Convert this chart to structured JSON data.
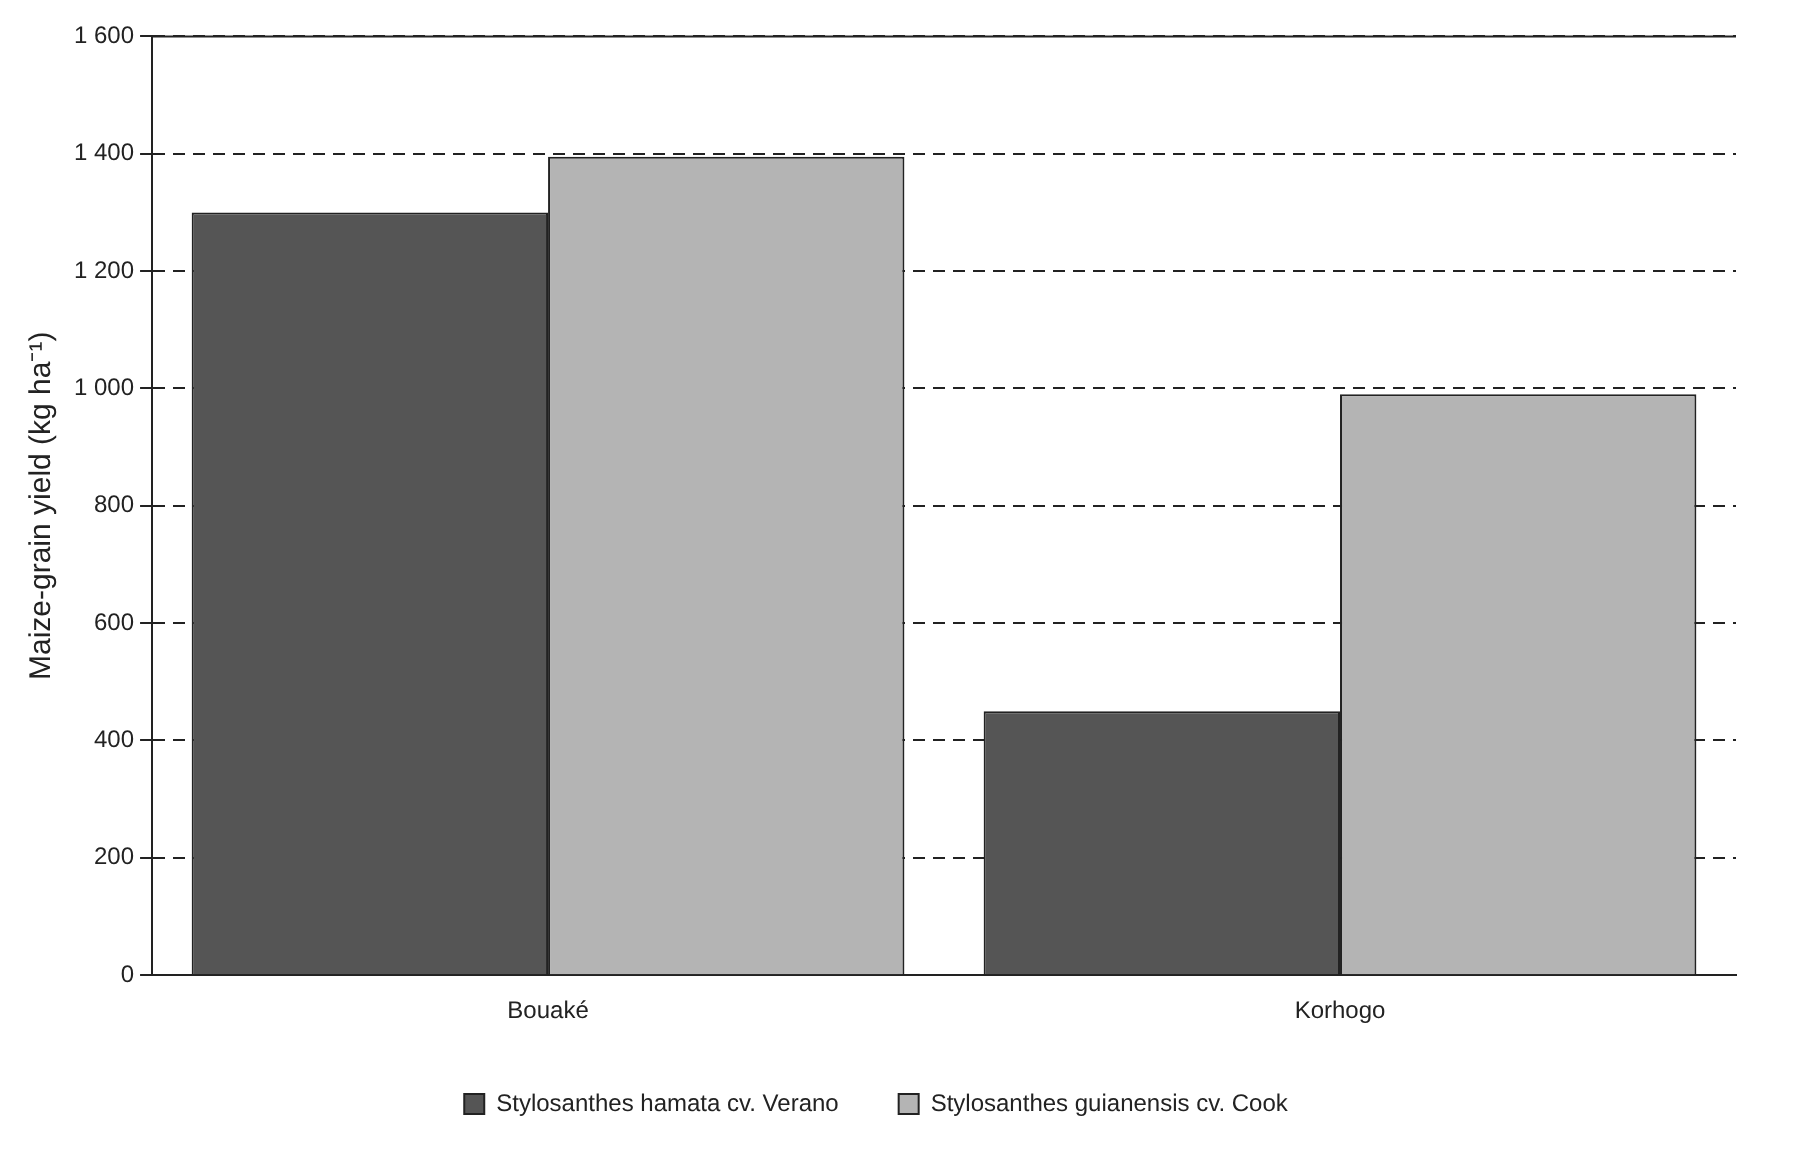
{
  "chart_data": {
    "type": "bar",
    "ylabel": "Maize-grain yield (kg ha⁻¹)",
    "categories": [
      "Bouaké",
      "Korhogo"
    ],
    "series": [
      {
        "name": "Stylosanthes hamata cv. Verano",
        "color": "#555555",
        "values": [
          1300,
          450
        ]
      },
      {
        "name": "Stylosanthes guianensis cv. Cook",
        "color": "#b4b4b4",
        "values": [
          1395,
          990
        ]
      }
    ],
    "ylim": [
      0,
      1600
    ],
    "yticks": [
      0,
      200,
      400,
      600,
      800,
      {
        "value": 1000,
        "label": "1 000"
      },
      {
        "value": 1200,
        "label": "1 200"
      },
      {
        "value": 1400,
        "label": "1 400"
      },
      {
        "value": 1600,
        "label": "1 600"
      }
    ],
    "grid": "y",
    "legend": "bottom",
    "line_style": "dashed"
  }
}
